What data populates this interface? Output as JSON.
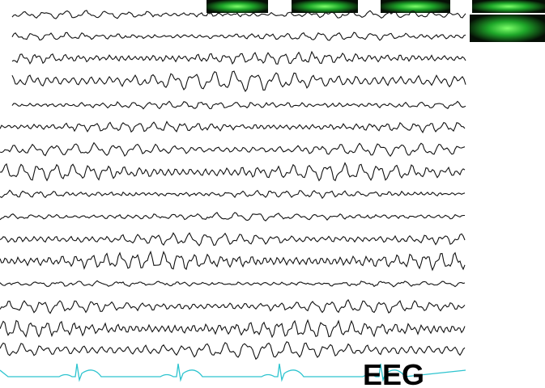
{
  "label": "EEG"
}
